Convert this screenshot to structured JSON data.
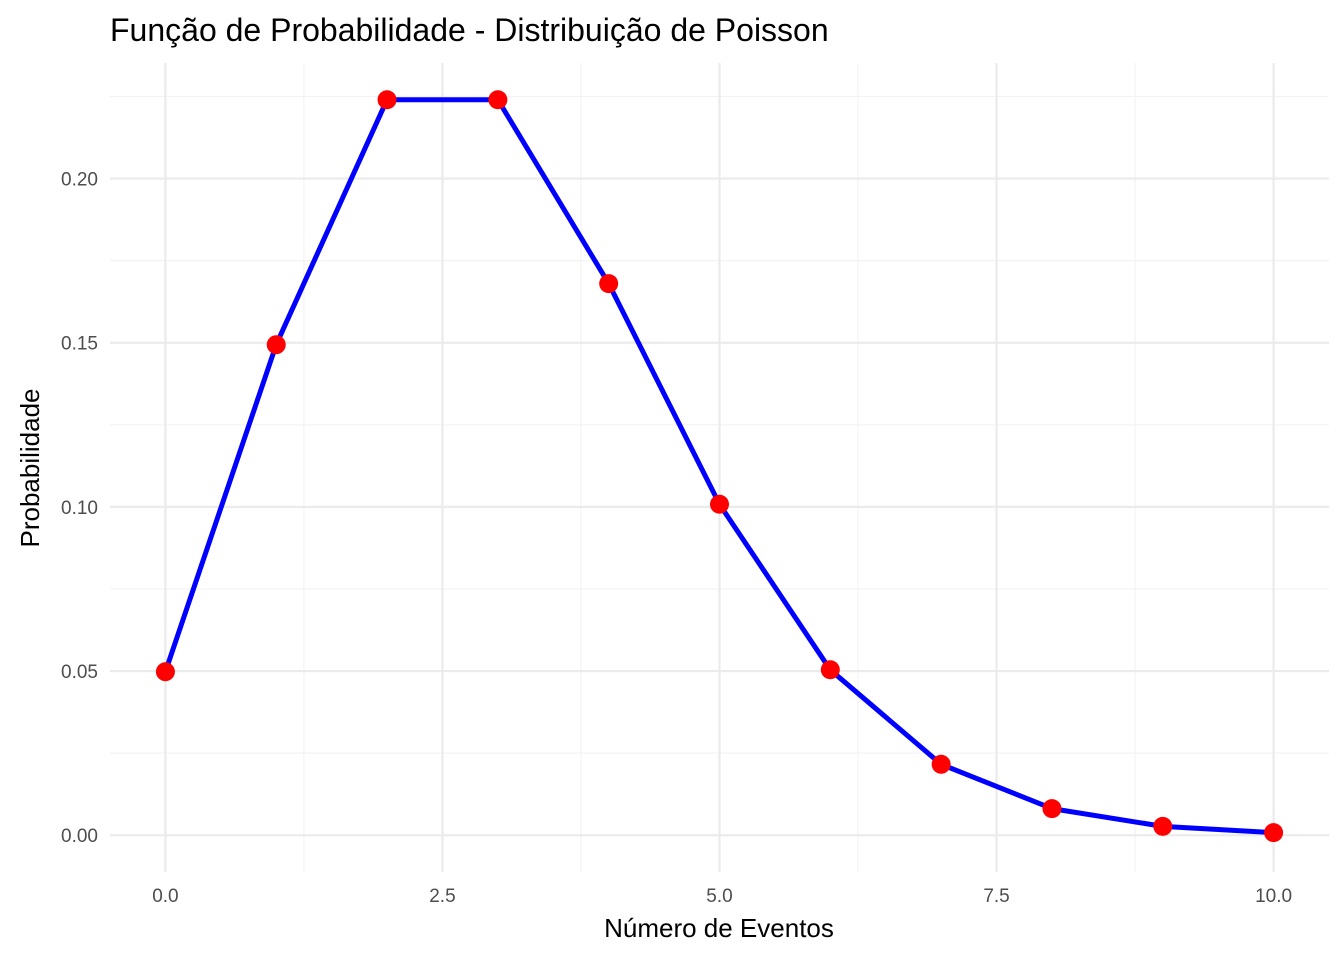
{
  "chart_data": {
    "type": "line",
    "title": "Função de Probabilidade - Distribuição de Poisson",
    "xlabel": "Número de Eventos",
    "ylabel": "Probabilidade",
    "x": [
      0,
      1,
      2,
      3,
      4,
      5,
      6,
      7,
      8,
      9,
      10
    ],
    "series": [
      {
        "values": [
          0.0498,
          0.1494,
          0.224,
          0.224,
          0.168,
          0.1008,
          0.0504,
          0.0216,
          0.0081,
          0.0027,
          0.0008
        ],
        "line_color": "#0000ff",
        "point_color": "#ff0000"
      }
    ],
    "xlim": [
      -0.5,
      10.5
    ],
    "ylim": [
      -0.0112,
      0.2352
    ],
    "x_ticks": [
      0,
      2.5,
      5,
      7.5,
      10
    ],
    "x_tick_labels": [
      "0.0",
      "2.5",
      "5.0",
      "7.5",
      "10.0"
    ],
    "y_ticks": [
      0,
      0.05,
      0.1,
      0.15,
      0.2
    ],
    "y_tick_labels": [
      "0.00",
      "0.05",
      "0.10",
      "0.15",
      "0.20"
    ],
    "grid": true,
    "legend": "none"
  }
}
